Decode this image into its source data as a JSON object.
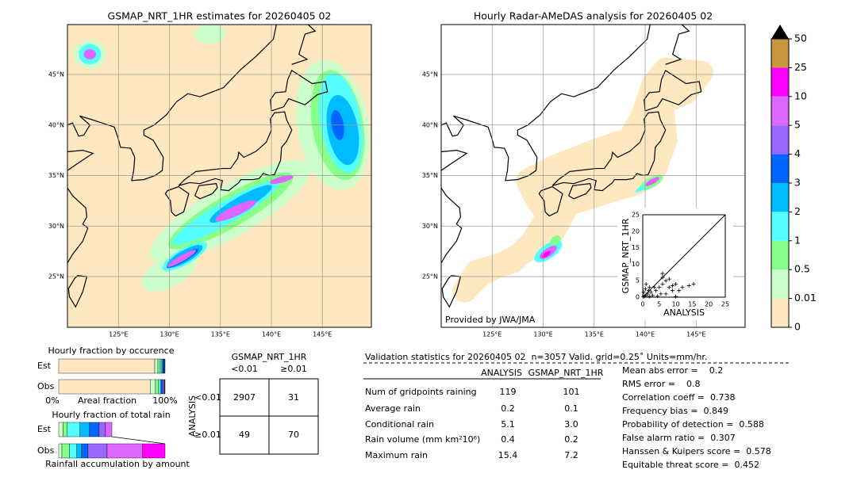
{
  "maps": [
    {
      "title": "GSMAP_NRT_1HR estimates for 20260405 02",
      "lat_labels": [
        "45°N",
        "40°N",
        "35°N",
        "30°N",
        "25°N"
      ],
      "lon_labels": [
        "125°E",
        "130°E",
        "135°E",
        "140°E",
        "145°E"
      ]
    },
    {
      "title": "Hourly Radar-AMeDAS analysis for 20260405 02",
      "lat_labels": [
        "45°N",
        "40°N",
        "35°N",
        "30°N",
        "25°N"
      ],
      "lon_labels": [
        "125°E",
        "130°E",
        "135°E",
        "140°E",
        "145°E"
      ],
      "credit": "Provided by JWA/JMA"
    }
  ],
  "colorbar": {
    "labels": [
      50,
      25,
      10,
      5,
      4,
      3,
      2,
      1,
      0.5,
      0.01,
      0
    ],
    "colors": [
      "#c8963c",
      "#ff00ff",
      "#dd66ff",
      "#9966ff",
      "#0066ff",
      "#00bbff",
      "#55ffff",
      "#88ff88",
      "#ccffcc",
      "#fde8c0"
    ]
  },
  "scatter": {
    "xlabel": "ANALYSIS",
    "ylabel": "GSMAP_NRT_1HR",
    "ticks": [
      0,
      5,
      10,
      15,
      20,
      25
    ],
    "lim": [
      0,
      25
    ],
    "x": [
      0.5,
      1,
      1.5,
      2,
      0.3,
      0.8,
      2.5,
      3,
      1,
      4,
      5,
      6,
      7,
      8,
      9,
      7,
      6,
      5.5,
      10,
      3.5,
      2,
      11,
      12,
      14,
      15.4,
      8,
      6,
      4.5,
      0.2,
      1.8,
      10,
      9
    ],
    "y": [
      0.3,
      0.5,
      1,
      0.2,
      1.5,
      2.5,
      1.5,
      0.5,
      4,
      2,
      3,
      4,
      5,
      3,
      2,
      1,
      6,
      1,
      4,
      3,
      3,
      2,
      3,
      3.5,
      4,
      5.5,
      7.2,
      0.3,
      0.1,
      2,
      0.2,
      3.5
    ]
  },
  "occurrence": {
    "title": "Hourly fraction by occurence",
    "left": "0%",
    "middle": "Areal fraction",
    "right": "100%",
    "rows": [
      {
        "label": "Est",
        "values": [
          90.3,
          3,
          2.2,
          1.5,
          1,
          1,
          1
        ],
        "colors": [
          "#fde8c0",
          "#ccffcc",
          "#88ff88",
          "#55ffff",
          "#00bbff",
          "#0066ff",
          "#333366"
        ]
      },
      {
        "label": "Obs",
        "values": [
          86,
          5,
          3,
          2,
          1.5,
          1.5,
          1
        ],
        "colors": [
          "#fde8c0",
          "#ccffcc",
          "#88ff88",
          "#55ffff",
          "#0066ff",
          "#9966ff",
          "#333366"
        ]
      }
    ]
  },
  "rain": {
    "title": "Hourly fraction of total rain",
    "footer": "Rainfall accumulation by amount",
    "rows": [
      {
        "label": "Est",
        "values": [
          4,
          4,
          12,
          9,
          9,
          6,
          6
        ],
        "colors": [
          "#ccffcc",
          "#88ff88",
          "#55ffff",
          "#00bbff",
          "#0066ff",
          "#9966ff",
          "#dd66ff"
        ]
      },
      {
        "label": "Obs",
        "values": [
          3,
          7,
          7,
          4.5,
          6,
          18,
          33.5,
          21
        ],
        "colors": [
          "#ccffcc",
          "#88ff88",
          "#55ffff",
          "#00bbff",
          "#0066ff",
          "#9966ff",
          "#dd66ff",
          "#ff00ff"
        ]
      }
    ]
  },
  "contingency": {
    "title": "GSMAP_NRT_1HR",
    "col_labels": [
      "<0.01",
      "≥0.01"
    ],
    "row_title": "ANALYSIS",
    "row_labels": [
      "<0.01",
      "≥0.01"
    ],
    "cells": [
      [
        "2907",
        "31"
      ],
      [
        "49",
        "70"
      ]
    ]
  },
  "validation": {
    "title": "Validation statistics for 20260405 02  n=3057 Valid. grid=0.25˚ Units=mm/hr.",
    "columns": [
      "ANALYSIS",
      "GSMAP_NRT_1HR"
    ],
    "rows": [
      {
        "label": "Num of gridpoints raining",
        "values": [
          "119",
          "101"
        ]
      },
      {
        "label": "Average rain",
        "values": [
          "0.2",
          "0.1"
        ]
      },
      {
        "label": "Conditional rain",
        "values": [
          "5.1",
          "3.0"
        ]
      },
      {
        "label": "Rain volume (mm km²10⁶)",
        "values": [
          "0.4",
          "0.2"
        ]
      },
      {
        "label": "Maximum rain",
        "values": [
          "15.4",
          "7.2"
        ]
      }
    ],
    "scores": [
      "Mean abs error =    0.2",
      "RMS error =    0.8",
      "Correlation coeff =  0.738",
      "Frequency bias =  0.849",
      "Probability of detection =  0.588",
      "False alarm ratio =  0.307",
      "Hanssen & Kuipers score =  0.578",
      "Equitable threat score =  0.452"
    ]
  }
}
